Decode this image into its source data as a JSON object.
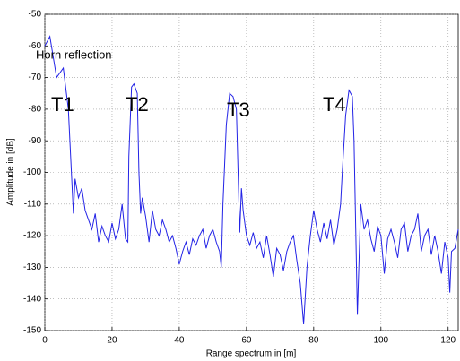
{
  "chart_data": {
    "type": "line",
    "xlabel": "Range spectrum in [m]",
    "ylabel": "Amplitude in [dB]",
    "annotations": [
      "Horn reflection",
      "T1",
      "T2",
      "T3",
      "T4"
    ],
    "color": "#2323e6",
    "grid": true,
    "xlim": [
      0,
      123
    ],
    "ylim": [
      -150,
      -50
    ],
    "xticks": [
      0,
      20,
      40,
      60,
      80,
      100,
      120
    ],
    "yticks": [
      -150,
      -140,
      -130,
      -120,
      -110,
      -100,
      -90,
      -80,
      -70,
      -60,
      -50
    ],
    "x": [
      0,
      1.5,
      3.5,
      5.5,
      7,
      8.5,
      9,
      10,
      11,
      12,
      13,
      14,
      15,
      16,
      17,
      18,
      19,
      20,
      21,
      22,
      23,
      24,
      24.7,
      25,
      25.8,
      26.5,
      27.5,
      28,
      28.5,
      29,
      30,
      31,
      32,
      33,
      34,
      35,
      36,
      37,
      38,
      39,
      40,
      41,
      42,
      43,
      44,
      45,
      46,
      47,
      48,
      49,
      50,
      51,
      52,
      52.5,
      53,
      54,
      55,
      56,
      57,
      57.5,
      58,
      58.5,
      59,
      60,
      61,
      62,
      63,
      64,
      65,
      66,
      67,
      68,
      69,
      70,
      71,
      72,
      73,
      74,
      75,
      76,
      77,
      78,
      79,
      80,
      81,
      82,
      83,
      84,
      85,
      86,
      87,
      88,
      88.5,
      89.5,
      90.5,
      91.5,
      92,
      93,
      94,
      95,
      96,
      97,
      98,
      99,
      100,
      101,
      102,
      103,
      104,
      105,
      106,
      107,
      108,
      109,
      110,
      111,
      112,
      113,
      114,
      115,
      116,
      117,
      118,
      119,
      120,
      120.5,
      121,
      122,
      123
    ],
    "values": [
      -60,
      -57,
      -70,
      -67,
      -80,
      -113,
      -102,
      -108,
      -105,
      -112,
      -115,
      -118,
      -113,
      -122,
      -117,
      -120,
      -122,
      -116,
      -121,
      -118,
      -110,
      -121,
      -122,
      -95,
      -73,
      -72,
      -75,
      -100,
      -113,
      -108,
      -114,
      -122,
      -112,
      -118,
      -120,
      -115,
      -118,
      -122,
      -120,
      -124,
      -129,
      -125,
      -122,
      -126,
      -121,
      -123,
      -120,
      -118,
      -124,
      -120,
      -118,
      -122,
      -125,
      -130,
      -110,
      -85,
      -75,
      -76,
      -80,
      -100,
      -119,
      -105,
      -112,
      -120,
      -123,
      -119,
      -124,
      -122,
      -127,
      -120,
      -126,
      -133,
      -124,
      -126,
      -131,
      -125,
      -122,
      -120,
      -128,
      -135,
      -148,
      -130,
      -120,
      -112,
      -118,
      -122,
      -116,
      -121,
      -115,
      -123,
      -118,
      -110,
      -100,
      -82,
      -74,
      -76,
      -90,
      -145,
      -110,
      -118,
      -115,
      -121,
      -125,
      -117,
      -120,
      -132,
      -121,
      -118,
      -122,
      -127,
      -118,
      -116,
      -125,
      -120,
      -118,
      -113,
      -125,
      -120,
      -118,
      -126,
      -120,
      -125,
      -132,
      -122,
      -127,
      -138,
      -125,
      -124,
      -118
    ]
  }
}
